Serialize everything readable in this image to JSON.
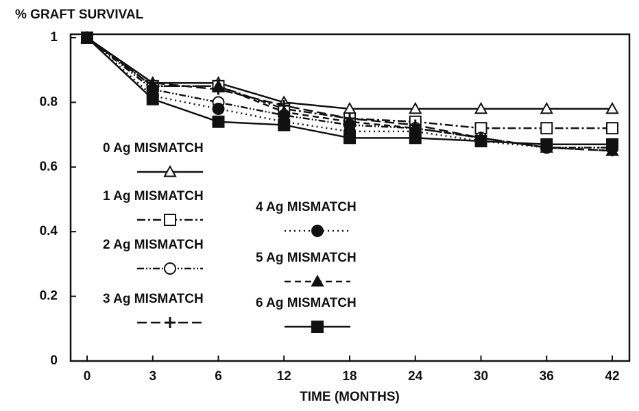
{
  "chart_data": {
    "type": "line",
    "title": "% GRAFT SURVIVAL",
    "x_label": "TIME (MONTHS)",
    "categories": [
      "0",
      "3",
      "6",
      "12",
      "18",
      "24",
      "30",
      "36",
      "42"
    ],
    "ylim": [
      0,
      1
    ],
    "yticks": [
      0,
      0.2,
      0.4,
      0.6,
      0.8,
      1
    ],
    "series": [
      {
        "name": "0 Ag MISMATCH",
        "color": "#111111",
        "marker": "triangle-open",
        "dash": "solid",
        "values": [
          1,
          0.86,
          0.86,
          0.8,
          0.78,
          0.78,
          0.78,
          0.78,
          0.78
        ]
      },
      {
        "name": "1 Ag MISMATCH",
        "color": "#111111",
        "marker": "square-open",
        "dash": "dash-dot",
        "values": [
          1,
          0.85,
          0.85,
          0.78,
          0.75,
          0.74,
          0.72,
          0.72,
          0.72
        ]
      },
      {
        "name": "2 Ag MISMATCH",
        "color": "#111111",
        "marker": "circle-open",
        "dash": "dash-dot-dot",
        "values": [
          1,
          0.84,
          0.8,
          0.76,
          0.73,
          0.72,
          0.69,
          0.66,
          0.66
        ]
      },
      {
        "name": "3 Ag MISMATCH",
        "color": "#111111",
        "marker": "plus",
        "dash": "long-dash",
        "values": [
          1,
          0.86,
          0.84,
          0.79,
          0.75,
          0.73,
          0.69,
          0.66,
          0.65
        ]
      },
      {
        "name": "4 Ag MISMATCH",
        "color": "#111111",
        "marker": "circle",
        "dash": "dot",
        "values": [
          1,
          0.82,
          0.78,
          0.74,
          0.71,
          0.71,
          0.68,
          0.66,
          0.66
        ]
      },
      {
        "name": "5 Ag MISMATCH",
        "color": "#111111",
        "marker": "triangle",
        "dash": "dash",
        "values": [
          1,
          0.85,
          0.85,
          0.77,
          0.74,
          0.72,
          0.69,
          0.66,
          0.65
        ]
      },
      {
        "name": "6 Ag MISMATCH",
        "color": "#111111",
        "marker": "square",
        "dash": "solid",
        "values": [
          1,
          0.81,
          0.74,
          0.73,
          0.69,
          0.69,
          0.68,
          0.67,
          0.67
        ]
      }
    ]
  }
}
